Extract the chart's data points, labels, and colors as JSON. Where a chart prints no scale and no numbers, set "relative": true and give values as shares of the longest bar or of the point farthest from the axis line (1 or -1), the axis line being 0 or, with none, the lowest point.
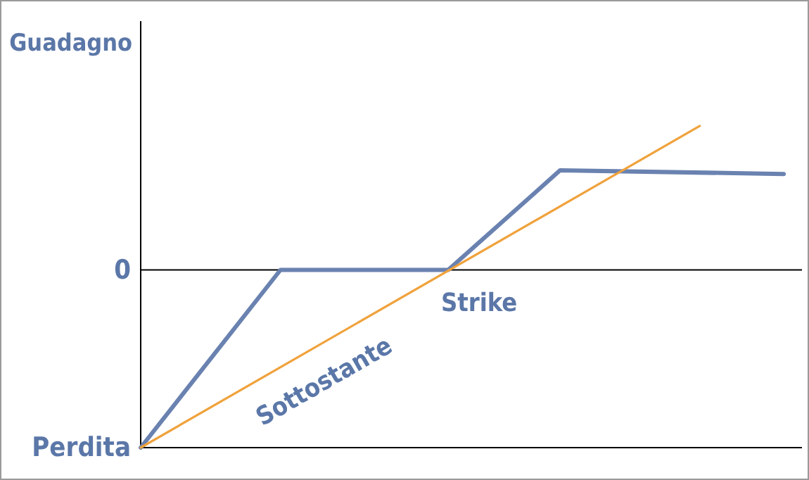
{
  "chart_data": {
    "type": "line",
    "relative": true,
    "ylabel": "Guadagno",
    "categories": [
      null,
      null,
      null,
      null,
      null,
      null,
      null,
      null,
      null,
      null,
      null,
      null,
      null,
      null,
      null,
      null,
      null,
      null,
      null,
      null,
      null,
      null,
      null,
      null
    ],
    "series": [
      {
        "color": "#6a82b0",
        "values": [
          -1,
          null,
          null,
          null,
          null,
          0,
          null,
          null,
          null,
          null,
          null,
          0,
          null,
          null,
          null,
          0.56,
          null,
          null,
          null,
          null,
          null,
          null,
          null,
          0.54
        ]
      },
      {
        "color": "#f0a23c",
        "values": [
          -1,
          null,
          null,
          null,
          null,
          null,
          null,
          null,
          null,
          null,
          null,
          null,
          null,
          null,
          null,
          null,
          null,
          null,
          null,
          null,
          0.81,
          null,
          null,
          null
        ]
      }
    ],
    "annotations": [
      "0",
      "Perdita",
      "Strike",
      "Sottostante"
    ]
  }
}
